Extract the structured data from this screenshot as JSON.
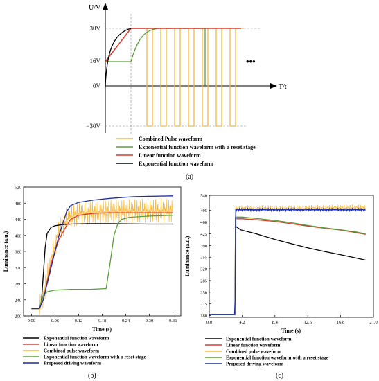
{
  "chart_data": [
    {
      "panel_label": "(a)",
      "type": "line",
      "xlabel": "T/t",
      "ylabel": "U/V",
      "ytick_labels": [
        "30V",
        "16V",
        "0V",
        "−30V"
      ],
      "yticks": [
        30,
        16,
        0,
        -30
      ],
      "ellipsis": "•••",
      "colors": {
        "combined": "#f5b93a",
        "exponential_reset": "#5c9e3c",
        "linear": "#d93b2b",
        "exponential": "#000000"
      },
      "legend": [
        {
          "key": "combined",
          "label": "Combined Pulse waveform"
        },
        {
          "key": "exponential_reset",
          "label": "Exponential function waveform with a reset stage"
        },
        {
          "key": "linear",
          "label": "Linear function waveform"
        },
        {
          "key": "exponential",
          "label": "Exponential function waveform"
        }
      ],
      "pulse_count": 7
    },
    {
      "panel_label": "(b)",
      "type": "line",
      "xlabel": "Time (s)",
      "ylabel": "Luminance (a.u.)",
      "xlim": [
        -0.02,
        0.38
      ],
      "ylim": [
        200,
        520
      ],
      "xticks": [
        0.0,
        0.06,
        0.12,
        0.18,
        0.24,
        0.3,
        0.36
      ],
      "xtick_labels": [
        "0.00",
        "0.06",
        "0.12",
        "0.18",
        "0.24",
        "0.30",
        "0.36"
      ],
      "yticks": [
        200,
        240,
        280,
        320,
        360,
        400,
        440,
        480,
        520
      ],
      "ytick_labels": [
        "200",
        "240",
        "280",
        "320",
        "360",
        "400",
        "440",
        "480",
        "520"
      ],
      "legend": [
        {
          "key": "exponential",
          "label": "Exponential function waveform"
        },
        {
          "key": "linear",
          "label": "Linear function waveform"
        },
        {
          "key": "combined",
          "label": "Combined pulse waveform"
        },
        {
          "key": "exponential_reset",
          "label": "Exponential function waveform with a reset stage"
        },
        {
          "key": "proposed",
          "label": "Proposed driving waveform"
        }
      ],
      "series": [
        {
          "name": "Exponential function waveform",
          "key": "exponential",
          "color": "#000000",
          "x": [
            0.0,
            0.02,
            0.025,
            0.03,
            0.035,
            0.04,
            0.05,
            0.06,
            0.08,
            0.1,
            0.15,
            0.2,
            0.3,
            0.36
          ],
          "y": [
            218,
            218,
            230,
            300,
            370,
            405,
            420,
            424,
            427,
            428,
            429,
            429,
            428,
            428
          ]
        },
        {
          "name": "Linear function waveform",
          "key": "linear",
          "color": "#d93b2b",
          "x": [
            0.0,
            0.02,
            0.03,
            0.05,
            0.07,
            0.09,
            0.1,
            0.12,
            0.16,
            0.2,
            0.3,
            0.36
          ],
          "y": [
            218,
            218,
            240,
            330,
            390,
            425,
            440,
            450,
            455,
            456,
            456,
            456
          ]
        },
        {
          "name": "Combined pulse waveform",
          "key": "combined",
          "color": "#f5b93a",
          "x": [
            0.0,
            0.02,
            0.03,
            0.05,
            0.07,
            0.09,
            0.12,
            0.2,
            0.3,
            0.36
          ],
          "y": [
            218,
            218,
            250,
            340,
            410,
            440,
            455,
            460,
            462,
            462
          ],
          "oscillation_amplitude": 30
        },
        {
          "name": "Exponential function waveform with a reset stage",
          "key": "exponential_reset",
          "color": "#5c9e3c",
          "x": [
            0.0,
            0.02,
            0.025,
            0.03,
            0.04,
            0.06,
            0.1,
            0.15,
            0.19,
            0.2,
            0.21,
            0.22,
            0.23,
            0.25,
            0.3,
            0.36
          ],
          "y": [
            218,
            218,
            235,
            250,
            260,
            264,
            266,
            266,
            268,
            330,
            400,
            430,
            440,
            445,
            448,
            450
          ]
        },
        {
          "name": "Proposed driving waveform",
          "key": "proposed",
          "color": "#1c2fa8",
          "x": [
            0.0,
            0.02,
            0.03,
            0.05,
            0.07,
            0.09,
            0.1,
            0.12,
            0.16,
            0.2,
            0.26,
            0.3,
            0.36
          ],
          "y": [
            218,
            218,
            240,
            320,
            400,
            460,
            474,
            482,
            488,
            492,
            496,
            497,
            498
          ]
        }
      ]
    },
    {
      "panel_label": "(c)",
      "type": "line",
      "xlabel": "Time (s)",
      "ylabel": "Luminance (a.u.)",
      "xlim": [
        0,
        21
      ],
      "ylim": [
        175,
        540
      ],
      "xticks": [
        0,
        4.2,
        8.4,
        12.6,
        16.8,
        21.0
      ],
      "xtick_labels": [
        "0.0",
        "4.2",
        "8.4",
        "12.6",
        "16.8",
        "21.0"
      ],
      "yticks": [
        180,
        215,
        250,
        285,
        320,
        355,
        390,
        425,
        460,
        495,
        540
      ],
      "ytick_labels": [
        "180",
        "215",
        "250",
        "285",
        "320",
        "355",
        "390",
        "425",
        "460",
        "495",
        "540"
      ],
      "legend": [
        {
          "key": "exponential",
          "label": "Exponential function waveform"
        },
        {
          "key": "linear",
          "label": "Linear function waveform"
        },
        {
          "key": "combined",
          "label": "Combined pulse waveform"
        },
        {
          "key": "exponential_reset",
          "label": "Exponential function waveform with a reset stage"
        },
        {
          "key": "proposed",
          "label": "Proposed driving waveform"
        }
      ],
      "series": [
        {
          "name": "Exponential function waveform",
          "key": "exponential",
          "color": "#000000",
          "x": [
            0,
            3.3,
            3.35,
            4.0,
            6,
            8.4,
            10.5,
            12.6,
            14.7,
            16.8,
            18.9,
            20
          ],
          "y": [
            183,
            183,
            448,
            437,
            425,
            408,
            395,
            383,
            372,
            362,
            352,
            346
          ]
        },
        {
          "name": "Linear function waveform",
          "key": "linear",
          "color": "#d93b2b",
          "x": [
            0,
            3.3,
            3.35,
            4.2,
            6,
            8.4,
            10.5,
            12.6,
            14.7,
            16.8,
            18.9,
            20
          ],
          "y": [
            183,
            183,
            470,
            470,
            467,
            462,
            455,
            448,
            442,
            436,
            428,
            423
          ]
        },
        {
          "name": "Combined pulse waveform",
          "key": "combined",
          "color": "#f5b93a",
          "x": [
            0,
            3.3,
            3.35,
            6,
            10,
            14,
            18,
            20
          ],
          "y": [
            183,
            183,
            500,
            500,
            500,
            502,
            503,
            503
          ],
          "oscillation_amplitude": 10
        },
        {
          "name": "Exponential function waveform with a reset stage",
          "key": "exponential_reset",
          "color": "#5c9e3c",
          "x": [
            0,
            3.3,
            3.35,
            4.2,
            6,
            8.4,
            10.5,
            12.6,
            14.7,
            16.8,
            18.9,
            20
          ],
          "y": [
            183,
            183,
            475,
            475,
            471,
            465,
            458,
            450,
            443,
            437,
            430,
            425
          ]
        },
        {
          "name": "Proposed driving waveform",
          "key": "proposed",
          "color": "#1c2fa8",
          "x": [
            0,
            3.3,
            3.35,
            6,
            10,
            14,
            18,
            20
          ],
          "y": [
            183,
            183,
            497,
            497,
            497,
            497,
            497,
            497
          ],
          "oscillation_amplitude": 3
        }
      ]
    }
  ]
}
